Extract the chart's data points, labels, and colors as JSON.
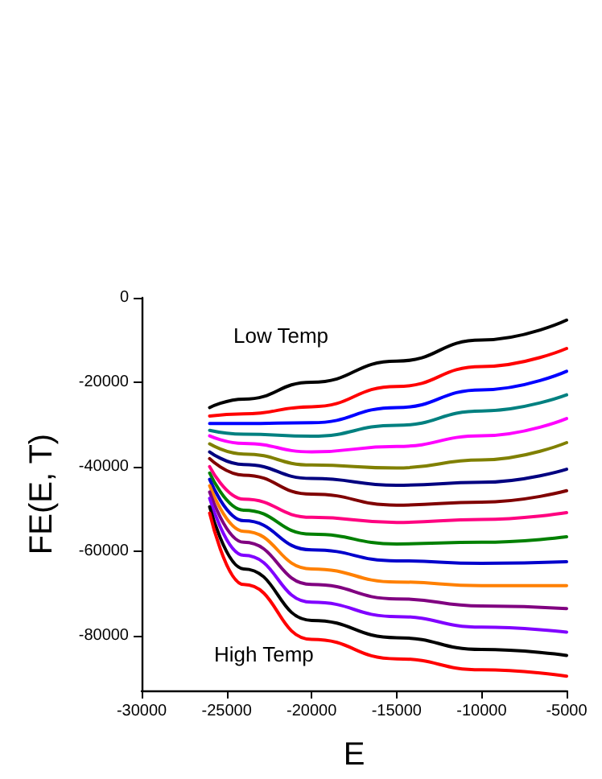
{
  "chart_data": {
    "type": "line",
    "xlabel": "E",
    "ylabel": "FE(E, T)",
    "x": [
      -26000,
      -24000,
      -20000,
      -15000,
      -10000,
      -5000
    ],
    "xlim": [
      -30000,
      -5000
    ],
    "xticks": [
      -30000,
      -25000,
      -20000,
      -15000,
      -10000,
      -5000
    ],
    "ylim": [
      -93000,
      0
    ],
    "yticks": [
      0,
      -20000,
      -40000,
      -60000,
      -80000
    ],
    "grid": false,
    "annotations": [
      "Low Temp",
      "High Temp"
    ],
    "series": [
      {
        "color": "#000000",
        "values": [
          -26000,
          -24000,
          -20000,
          -15000,
          -10000,
          -5300
        ]
      },
      {
        "color": "#ff0000",
        "values": [
          -28000,
          -27500,
          -25800,
          -21000,
          -16300,
          -12000
        ]
      },
      {
        "color": "#0000ff",
        "values": [
          -29800,
          -29800,
          -29600,
          -26000,
          -21800,
          -17400
        ]
      },
      {
        "color": "#008080",
        "values": [
          -31400,
          -32300,
          -32800,
          -30200,
          -26800,
          -23000
        ]
      },
      {
        "color": "#ff00ff",
        "values": [
          -32700,
          -34500,
          -36500,
          -35200,
          -32700,
          -28600
        ]
      },
      {
        "color": "#808000",
        "values": [
          -34600,
          -37000,
          -39600,
          -40300,
          -38400,
          -34300
        ]
      },
      {
        "color": "#000080",
        "values": [
          -36500,
          -39500,
          -42800,
          -44400,
          -43700,
          -40600
        ]
      },
      {
        "color": "#800000",
        "values": [
          -38100,
          -42000,
          -46500,
          -49100,
          -48400,
          -45700
        ]
      },
      {
        "color": "#ff0080",
        "values": [
          -40000,
          -47700,
          -52000,
          -53200,
          -52500,
          -50900
        ]
      },
      {
        "color": "#008000",
        "values": [
          -41500,
          -50300,
          -56000,
          -58300,
          -57900,
          -56600
        ]
      },
      {
        "color": "#0000cc",
        "values": [
          -43000,
          -52800,
          -59700,
          -62300,
          -62900,
          -62500
        ]
      },
      {
        "color": "#ff8000",
        "values": [
          -44500,
          -55300,
          -64200,
          -67300,
          -68200,
          -68200
        ]
      },
      {
        "color": "#800080",
        "values": [
          -46000,
          -57900,
          -67900,
          -71300,
          -73000,
          -73600
        ]
      },
      {
        "color": "#8000ff",
        "values": [
          -47500,
          -61000,
          -72100,
          -75500,
          -78000,
          -79200
        ]
      },
      {
        "color": "#000000",
        "values": [
          -49500,
          -64200,
          -76400,
          -80500,
          -83300,
          -84700
        ]
      },
      {
        "color": "#ff0000",
        "values": [
          -51000,
          -67900,
          -80900,
          -85500,
          -88100,
          -89600
        ]
      }
    ]
  }
}
